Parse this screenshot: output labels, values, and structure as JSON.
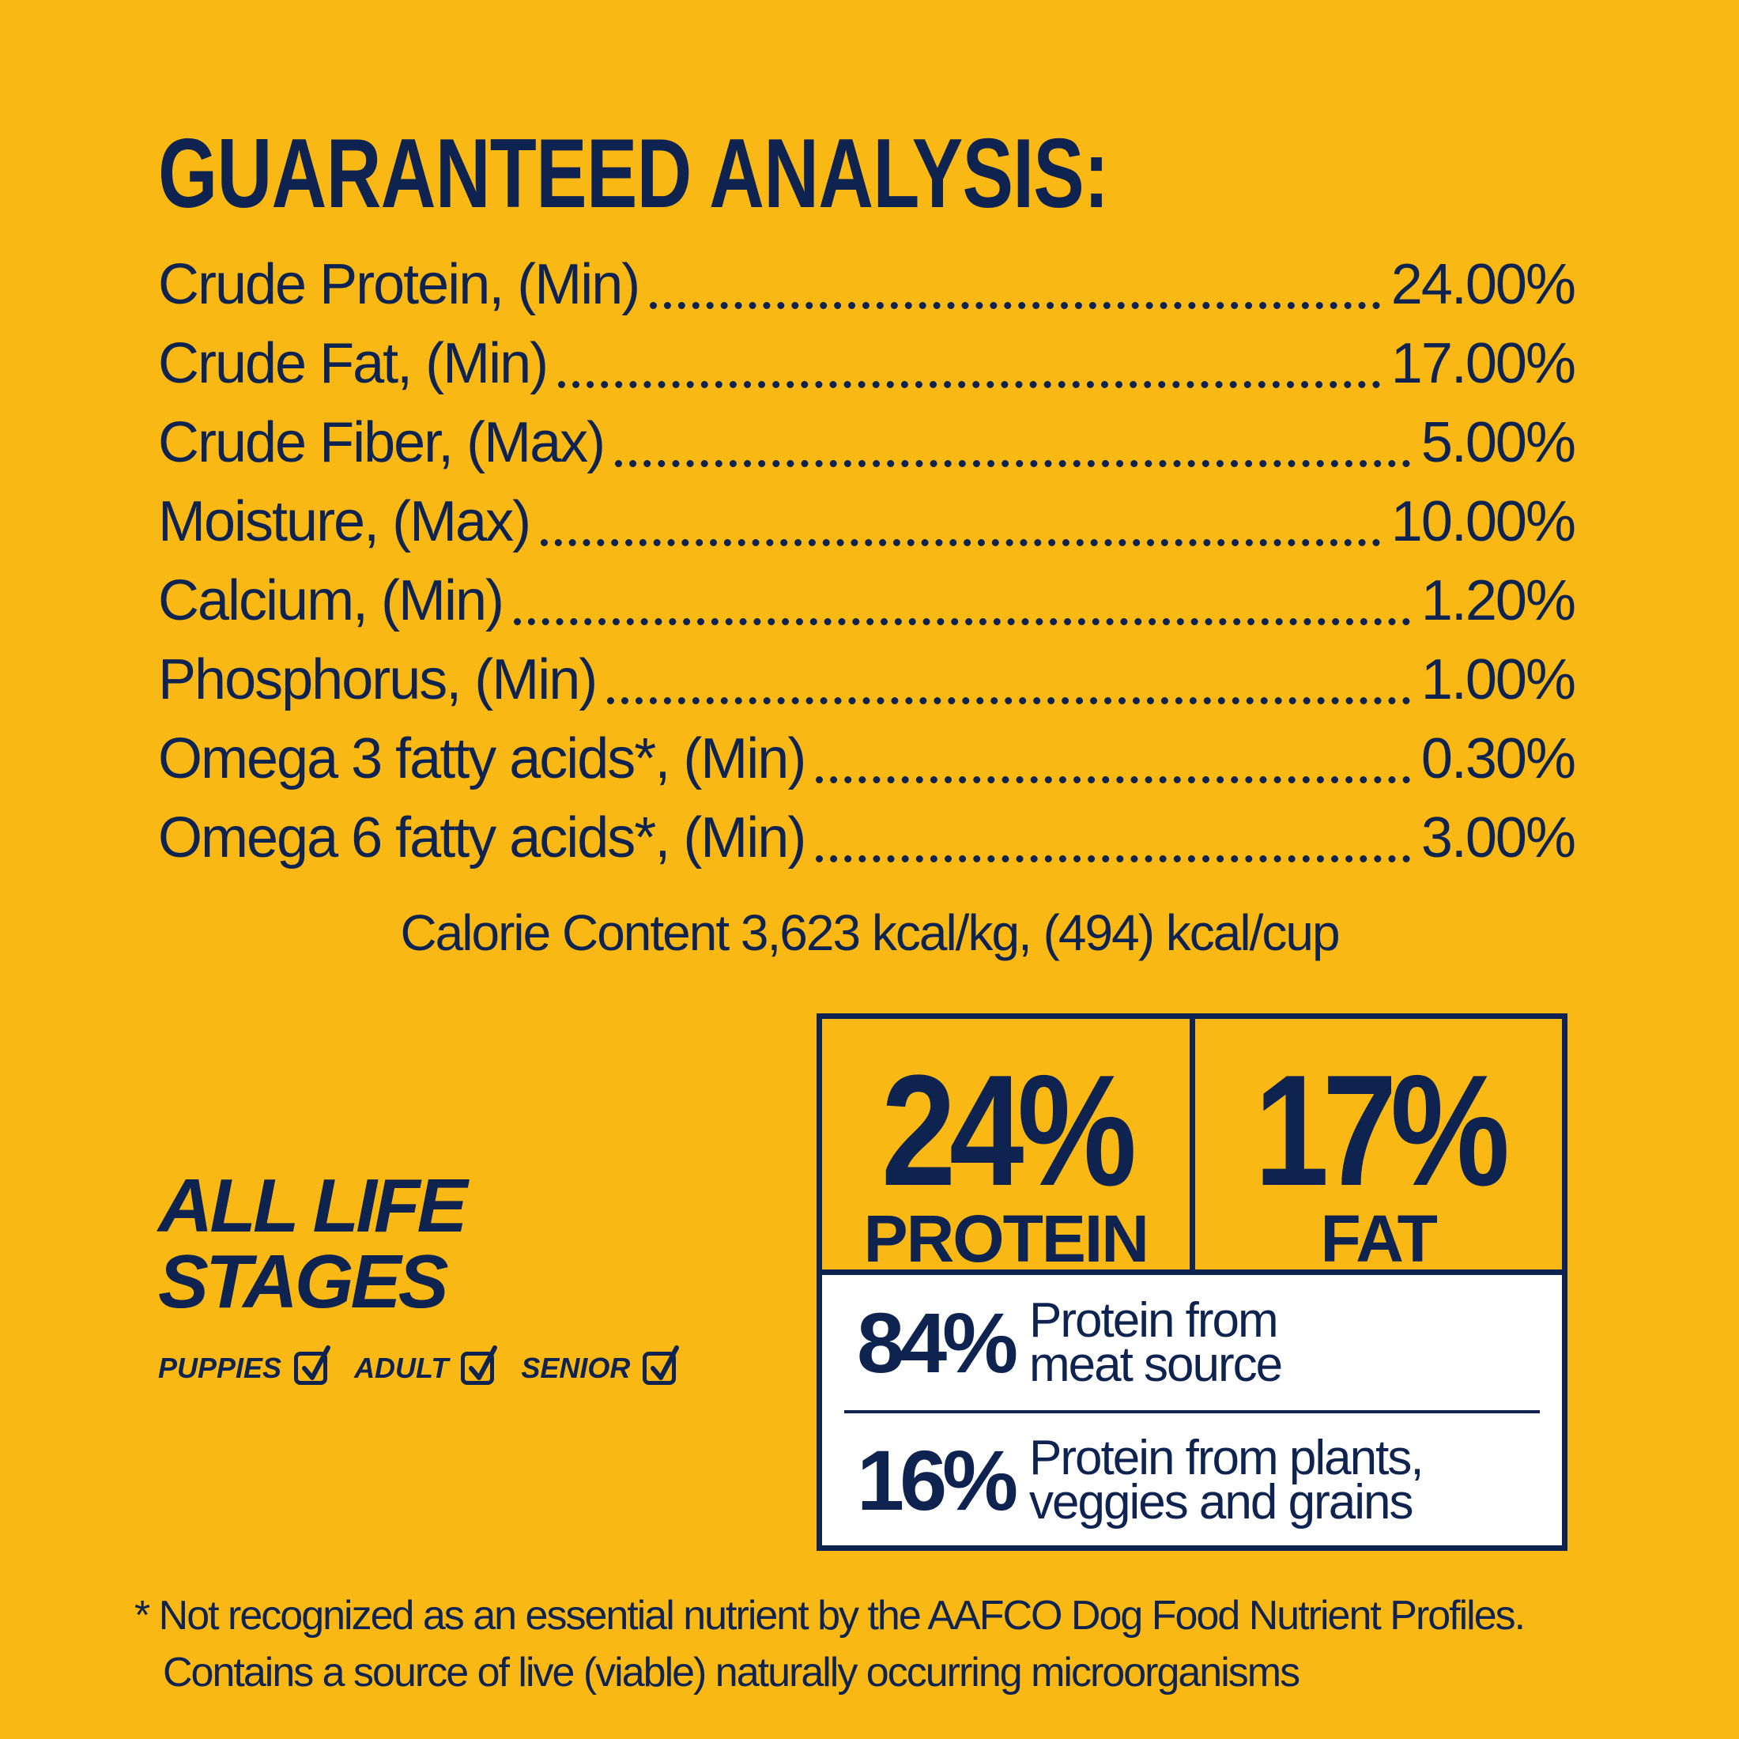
{
  "title": "GUARANTEED ANALYSIS:",
  "analysis": [
    {
      "label": "Crude Protein, (Min)",
      "value": "24.00%"
    },
    {
      "label": "Crude Fat, (Min)",
      "value": "17.00%"
    },
    {
      "label": "Crude Fiber, (Max)",
      "value": "5.00%"
    },
    {
      "label": "Moisture, (Max)",
      "value": "10.00%"
    },
    {
      "label": "Calcium, (Min)",
      "value": "1.20%"
    },
    {
      "label": "Phosphorus, (Min)",
      "value": "1.00%"
    },
    {
      "label": "Omega 3 fatty acids*, (Min)",
      "value": "0.30%"
    },
    {
      "label": "Omega 6 fatty acids*, (Min)",
      "value": "3.00%"
    }
  ],
  "calorie_content": "Calorie Content 3,623 kcal/kg, (494) kcal/cup",
  "life_stages": {
    "title": "ALL LIFE STAGES",
    "items": [
      {
        "label": "PUPPIES",
        "icon": "checkbox-checked-icon"
      },
      {
        "label": "ADULT",
        "icon": "checkbox-checked-icon"
      },
      {
        "label": "SENIOR",
        "icon": "checkbox-checked-icon"
      }
    ]
  },
  "highlights": {
    "protein": {
      "value": "24%",
      "label": "PROTEIN"
    },
    "fat": {
      "value": "17%",
      "label": "FAT"
    },
    "sources": [
      {
        "value": "84%",
        "text": "Protein from\nmeat source"
      },
      {
        "value": "16%",
        "text": "Protein from plants,\nveggies and grains"
      }
    ]
  },
  "footnote": {
    "line1": "* Not recognized as an essential nutrient by the AAFCO Dog Food Nutrient Profiles.",
    "line2": "Contains a source of live (viable) naturally occurring microorganisms"
  },
  "colors": {
    "background": "#F9B814",
    "text": "#0E2350",
    "panel": "#FFFFFF"
  }
}
